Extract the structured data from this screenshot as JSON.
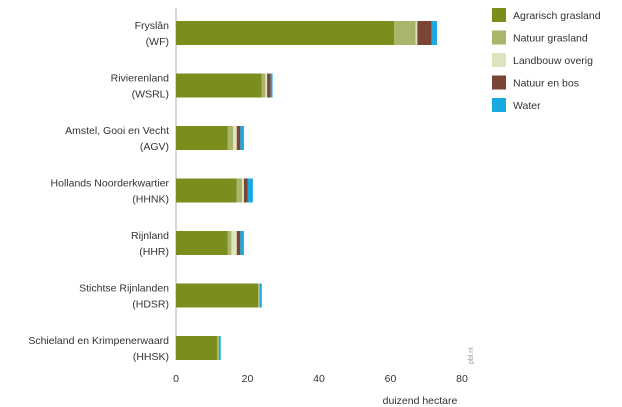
{
  "chart_data": {
    "type": "bar",
    "orientation": "horizontal",
    "stacked": true,
    "categories": [
      [
        "Fryslân",
        "(WF)"
      ],
      [
        "Rivierenland",
        "(WSRL)"
      ],
      [
        "Amstel, Gooi en Vecht",
        "(AGV)"
      ],
      [
        "Hollands Noorderkwartier",
        "(HHNK)"
      ],
      [
        "Rijnland",
        "(HHR)"
      ],
      [
        "Stichtse Rijnlanden",
        "(HDSR)"
      ],
      [
        "Schieland en Krimpenerwaard",
        "(HHSK)"
      ]
    ],
    "series": [
      {
        "name": "Agrarisch grasland",
        "color": "#7a8d1d",
        "values": [
          61,
          24,
          14.5,
          17,
          14.5,
          23,
          11.5
        ]
      },
      {
        "name": "Natuur grasland",
        "color": "#aab46a",
        "values": [
          6,
          1,
          1.5,
          1.5,
          1,
          0.5,
          0.5
        ]
      },
      {
        "name": "Landbouw overig",
        "color": "#dfe4be",
        "values": [
          0.5,
          0.5,
          1,
          0.5,
          1.5,
          0,
          0
        ]
      },
      {
        "name": "Natuur en bos",
        "color": "#7b4535",
        "values": [
          4,
          1,
          1,
          1,
          1,
          0,
          0
        ]
      },
      {
        "name": "Water",
        "color": "#19a9e1",
        "values": [
          1.5,
          0.5,
          1,
          1.5,
          1,
          0.5,
          0.5
        ]
      }
    ],
    "xlabel": "duizend hectare",
    "xlim": [
      0,
      80
    ],
    "xticks": [
      0,
      20,
      40,
      60,
      80
    ],
    "grid": false,
    "legend_position": "right",
    "source_mark": "pbl.nl"
  }
}
